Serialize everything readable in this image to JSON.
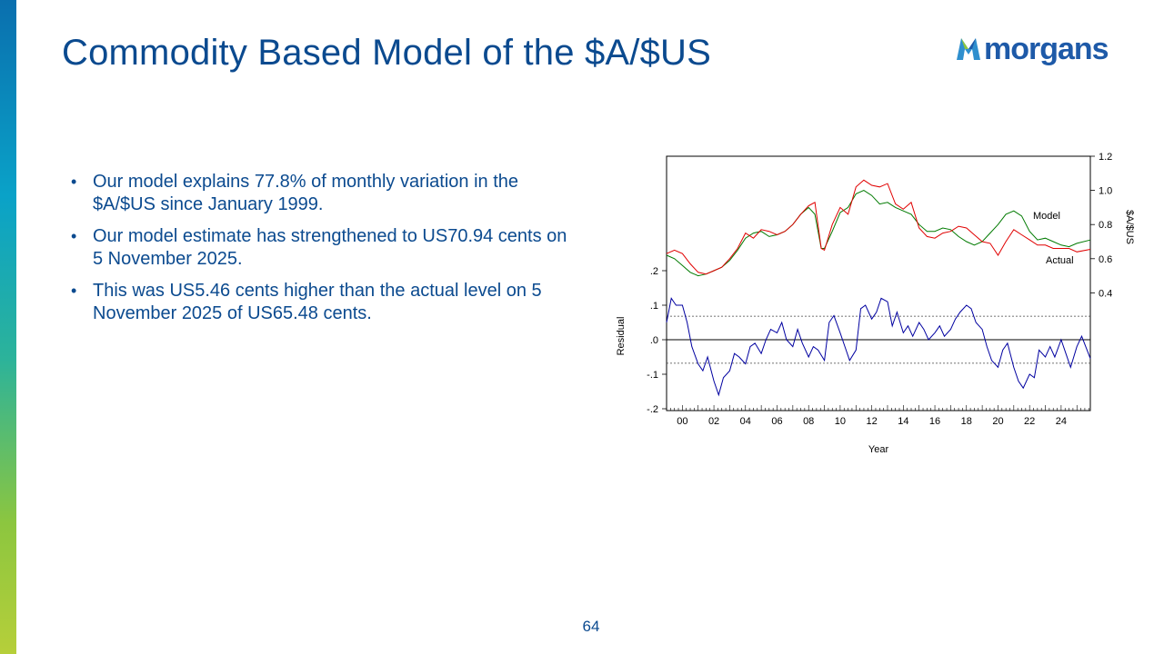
{
  "slide": {
    "title": "Commodity Based Model of the $A/$US",
    "logo_text": "morgans",
    "page_number": "64",
    "bullets": [
      "Our model explains 77.8% of monthly variation in the $A/$US since January 1999.",
      "Our model estimate has strengthened to US70.94 cents on 5 November 2025.",
      "This was US5.46 cents higher than the actual level on 5 November 2025 of US65.48 cents."
    ]
  },
  "colors": {
    "title": "#0b4a8f",
    "model": "#007a00",
    "actual": "#e00000",
    "residual": "#0000a0"
  },
  "chart_data": {
    "type": "line",
    "xlabel": "Year",
    "x_ticks": [
      "00",
      "02",
      "04",
      "06",
      "08",
      "10",
      "12",
      "14",
      "16",
      "18",
      "20",
      "22",
      "24"
    ],
    "x_range": [
      1999.0,
      2025.85
    ],
    "upper": {
      "ylabel": "$A/$US",
      "ylim": [
        0.2,
        1.2
      ],
      "y_ticks": [
        "0.4",
        "0.6",
        "0.8",
        "1.0",
        "1.2"
      ],
      "series": [
        {
          "name": "Model",
          "points": [
            [
              1999.0,
              0.62
            ],
            [
              1999.5,
              0.6
            ],
            [
              2000.0,
              0.56
            ],
            [
              2000.5,
              0.52
            ],
            [
              2001.0,
              0.5
            ],
            [
              2001.5,
              0.51
            ],
            [
              2002.0,
              0.53
            ],
            [
              2002.5,
              0.55
            ],
            [
              2003.0,
              0.59
            ],
            [
              2003.5,
              0.65
            ],
            [
              2004.0,
              0.72
            ],
            [
              2004.5,
              0.75
            ],
            [
              2005.0,
              0.76
            ],
            [
              2005.5,
              0.73
            ],
            [
              2006.0,
              0.74
            ],
            [
              2006.5,
              0.76
            ],
            [
              2007.0,
              0.8
            ],
            [
              2007.5,
              0.86
            ],
            [
              2008.0,
              0.9
            ],
            [
              2008.4,
              0.86
            ],
            [
              2008.8,
              0.66
            ],
            [
              2009.0,
              0.66
            ],
            [
              2009.5,
              0.76
            ],
            [
              2010.0,
              0.87
            ],
            [
              2010.5,
              0.9
            ],
            [
              2011.0,
              0.98
            ],
            [
              2011.5,
              1.0
            ],
            [
              2012.0,
              0.97
            ],
            [
              2012.5,
              0.92
            ],
            [
              2013.0,
              0.93
            ],
            [
              2013.5,
              0.9
            ],
            [
              2014.0,
              0.88
            ],
            [
              2014.5,
              0.86
            ],
            [
              2015.0,
              0.8
            ],
            [
              2015.5,
              0.76
            ],
            [
              2016.0,
              0.76
            ],
            [
              2016.5,
              0.78
            ],
            [
              2017.0,
              0.77
            ],
            [
              2017.5,
              0.73
            ],
            [
              2018.0,
              0.7
            ],
            [
              2018.5,
              0.68
            ],
            [
              2019.0,
              0.7
            ],
            [
              2019.5,
              0.75
            ],
            [
              2020.0,
              0.8
            ],
            [
              2020.5,
              0.86
            ],
            [
              2021.0,
              0.88
            ],
            [
              2021.5,
              0.85
            ],
            [
              2022.0,
              0.76
            ],
            [
              2022.5,
              0.71
            ],
            [
              2023.0,
              0.72
            ],
            [
              2023.5,
              0.7
            ],
            [
              2024.0,
              0.68
            ],
            [
              2024.5,
              0.67
            ],
            [
              2025.0,
              0.69
            ],
            [
              2025.85,
              0.7094
            ]
          ]
        },
        {
          "name": "Actual",
          "points": [
            [
              1999.0,
              0.63
            ],
            [
              1999.5,
              0.65
            ],
            [
              2000.0,
              0.63
            ],
            [
              2000.5,
              0.57
            ],
            [
              2001.0,
              0.52
            ],
            [
              2001.5,
              0.51
            ],
            [
              2002.0,
              0.53
            ],
            [
              2002.5,
              0.55
            ],
            [
              2003.0,
              0.6
            ],
            [
              2003.5,
              0.66
            ],
            [
              2004.0,
              0.75
            ],
            [
              2004.5,
              0.72
            ],
            [
              2005.0,
              0.77
            ],
            [
              2005.5,
              0.76
            ],
            [
              2006.0,
              0.74
            ],
            [
              2006.5,
              0.76
            ],
            [
              2007.0,
              0.8
            ],
            [
              2007.5,
              0.86
            ],
            [
              2008.0,
              0.91
            ],
            [
              2008.4,
              0.93
            ],
            [
              2008.8,
              0.66
            ],
            [
              2009.0,
              0.65
            ],
            [
              2009.5,
              0.8
            ],
            [
              2010.0,
              0.9
            ],
            [
              2010.5,
              0.86
            ],
            [
              2011.0,
              1.02
            ],
            [
              2011.5,
              1.06
            ],
            [
              2012.0,
              1.03
            ],
            [
              2012.5,
              1.02
            ],
            [
              2013.0,
              1.04
            ],
            [
              2013.5,
              0.92
            ],
            [
              2014.0,
              0.89
            ],
            [
              2014.5,
              0.93
            ],
            [
              2015.0,
              0.78
            ],
            [
              2015.5,
              0.73
            ],
            [
              2016.0,
              0.72
            ],
            [
              2016.5,
              0.75
            ],
            [
              2017.0,
              0.76
            ],
            [
              2017.5,
              0.79
            ],
            [
              2018.0,
              0.78
            ],
            [
              2018.5,
              0.74
            ],
            [
              2019.0,
              0.7
            ],
            [
              2019.5,
              0.69
            ],
            [
              2020.0,
              0.62
            ],
            [
              2020.5,
              0.7
            ],
            [
              2021.0,
              0.77
            ],
            [
              2021.5,
              0.74
            ],
            [
              2022.0,
              0.71
            ],
            [
              2022.5,
              0.68
            ],
            [
              2023.0,
              0.68
            ],
            [
              2023.5,
              0.66
            ],
            [
              2024.0,
              0.66
            ],
            [
              2024.5,
              0.66
            ],
            [
              2025.0,
              0.64
            ],
            [
              2025.85,
              0.6548
            ]
          ]
        }
      ]
    },
    "lower": {
      "ylabel": "Residual",
      "ylim": [
        -0.2,
        0.2
      ],
      "y_ticks": [
        ".2",
        ".1",
        ".0",
        "-.1",
        "-.2"
      ],
      "bands": [
        0.068,
        -0.068
      ],
      "series": [
        {
          "name": "Residual",
          "points": [
            [
              1999.0,
              0.05
            ],
            [
              1999.3,
              0.12
            ],
            [
              1999.6,
              0.1
            ],
            [
              2000.0,
              0.1
            ],
            [
              2000.3,
              0.05
            ],
            [
              2000.6,
              -0.02
            ],
            [
              2001.0,
              -0.07
            ],
            [
              2001.3,
              -0.09
            ],
            [
              2001.6,
              -0.05
            ],
            [
              2002.0,
              -0.12
            ],
            [
              2002.3,
              -0.16
            ],
            [
              2002.6,
              -0.11
            ],
            [
              2003.0,
              -0.09
            ],
            [
              2003.3,
              -0.04
            ],
            [
              2003.6,
              -0.05
            ],
            [
              2004.0,
              -0.07
            ],
            [
              2004.3,
              -0.02
            ],
            [
              2004.6,
              -0.01
            ],
            [
              2005.0,
              -0.04
            ],
            [
              2005.3,
              0.0
            ],
            [
              2005.6,
              0.03
            ],
            [
              2006.0,
              0.02
            ],
            [
              2006.3,
              0.05
            ],
            [
              2006.6,
              0.0
            ],
            [
              2007.0,
              -0.02
            ],
            [
              2007.3,
              0.03
            ],
            [
              2007.6,
              -0.01
            ],
            [
              2008.0,
              -0.05
            ],
            [
              2008.3,
              -0.02
            ],
            [
              2008.6,
              -0.03
            ],
            [
              2009.0,
              -0.06
            ],
            [
              2009.3,
              0.05
            ],
            [
              2009.6,
              0.07
            ],
            [
              2010.0,
              0.02
            ],
            [
              2010.3,
              -0.02
            ],
            [
              2010.6,
              -0.06
            ],
            [
              2011.0,
              -0.03
            ],
            [
              2011.3,
              0.09
            ],
            [
              2011.6,
              0.1
            ],
            [
              2012.0,
              0.06
            ],
            [
              2012.3,
              0.08
            ],
            [
              2012.6,
              0.12
            ],
            [
              2013.0,
              0.11
            ],
            [
              2013.3,
              0.04
            ],
            [
              2013.6,
              0.08
            ],
            [
              2014.0,
              0.02
            ],
            [
              2014.3,
              0.04
            ],
            [
              2014.6,
              0.01
            ],
            [
              2015.0,
              0.05
            ],
            [
              2015.3,
              0.03
            ],
            [
              2015.6,
              0.0
            ],
            [
              2016.0,
              0.02
            ],
            [
              2016.3,
              0.04
            ],
            [
              2016.6,
              0.01
            ],
            [
              2017.0,
              0.03
            ],
            [
              2017.3,
              0.06
            ],
            [
              2017.6,
              0.08
            ],
            [
              2018.0,
              0.1
            ],
            [
              2018.3,
              0.09
            ],
            [
              2018.6,
              0.05
            ],
            [
              2019.0,
              0.03
            ],
            [
              2019.3,
              -0.02
            ],
            [
              2019.6,
              -0.06
            ],
            [
              2020.0,
              -0.08
            ],
            [
              2020.3,
              -0.03
            ],
            [
              2020.6,
              -0.01
            ],
            [
              2021.0,
              -0.08
            ],
            [
              2021.3,
              -0.12
            ],
            [
              2021.6,
              -0.14
            ],
            [
              2022.0,
              -0.1
            ],
            [
              2022.3,
              -0.11
            ],
            [
              2022.6,
              -0.03
            ],
            [
              2023.0,
              -0.05
            ],
            [
              2023.3,
              -0.02
            ],
            [
              2023.6,
              -0.05
            ],
            [
              2024.0,
              0.0
            ],
            [
              2024.3,
              -0.04
            ],
            [
              2024.6,
              -0.08
            ],
            [
              2025.0,
              -0.02
            ],
            [
              2025.3,
              0.01
            ],
            [
              2025.85,
              -0.0546
            ]
          ]
        }
      ]
    }
  }
}
